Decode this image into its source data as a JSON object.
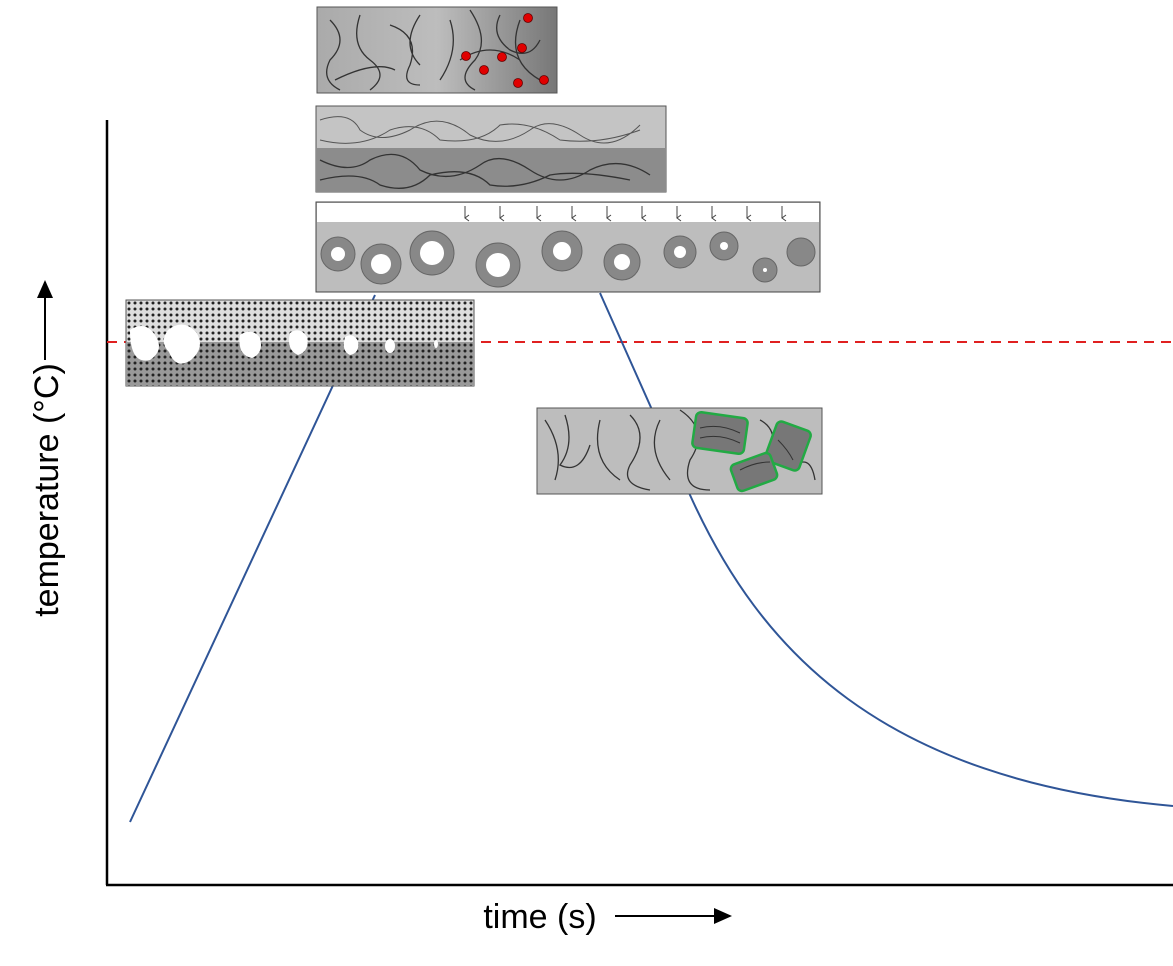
{
  "axes": {
    "y_label": "temperature (°C)",
    "x_label": "time (s)"
  }
}
